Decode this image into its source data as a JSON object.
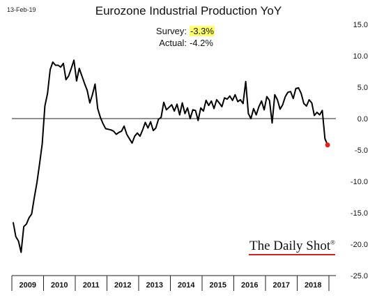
{
  "date_label": "13-Feb-19",
  "survey": {
    "label": "Survey:",
    "value": "-3.3%"
  },
  "actual": {
    "label": "Actual:",
    "value": "-4.2%"
  },
  "brand": {
    "name": "The Daily Shot",
    "mark": "®"
  },
  "colors": {
    "line": "#000000",
    "last_point": "#e8201c",
    "survey_highlight": "#ffff66",
    "brand_underline": "#d41f1f"
  },
  "chart_data": {
    "type": "line",
    "title": "Eurozone Industrial Production YoY",
    "xlabel": "",
    "ylabel": "",
    "ylim": [
      -25,
      15
    ],
    "y_ticks": [
      "15.0",
      "10.0",
      "5.0",
      "0.0",
      "-5.0",
      "-10.0",
      "-15.0",
      "-20.0",
      "-25.0"
    ],
    "y_axis_side": "right",
    "grid": false,
    "zero_line": true,
    "x_categories": [
      "2009",
      "2010",
      "2011",
      "2012",
      "2013",
      "2014",
      "2015",
      "2016",
      "2017",
      "2018"
    ],
    "series": [
      {
        "x": [
          "2009-01",
          "2009-02",
          "2009-03",
          "2009-04",
          "2009-05",
          "2009-06",
          "2009-07",
          "2009-08",
          "2009-09",
          "2009-10",
          "2009-11",
          "2009-12",
          "2010-01",
          "2010-02",
          "2010-03",
          "2010-04",
          "2010-05",
          "2010-06",
          "2010-07",
          "2010-08",
          "2010-09",
          "2010-10",
          "2010-11",
          "2010-12",
          "2011-01",
          "2011-02",
          "2011-03",
          "2011-04",
          "2011-05",
          "2011-06",
          "2011-07",
          "2011-08",
          "2011-09",
          "2011-10",
          "2011-11",
          "2011-12",
          "2012-01",
          "2012-02",
          "2012-03",
          "2012-04",
          "2012-05",
          "2012-06",
          "2012-07",
          "2012-08",
          "2012-09",
          "2012-10",
          "2012-11",
          "2012-12",
          "2013-01",
          "2013-02",
          "2013-03",
          "2013-04",
          "2013-05",
          "2013-06",
          "2013-07",
          "2013-08",
          "2013-09",
          "2013-10",
          "2013-11",
          "2013-12",
          "2014-01",
          "2014-02",
          "2014-03",
          "2014-04",
          "2014-05",
          "2014-06",
          "2014-07",
          "2014-08",
          "2014-09",
          "2014-10",
          "2014-11",
          "2014-12",
          "2015-01",
          "2015-02",
          "2015-03",
          "2015-04",
          "2015-05",
          "2015-06",
          "2015-07",
          "2015-08",
          "2015-09",
          "2015-10",
          "2015-11",
          "2015-12",
          "2016-01",
          "2016-02",
          "2016-03",
          "2016-04",
          "2016-05",
          "2016-06",
          "2016-07",
          "2016-08",
          "2016-09",
          "2016-10",
          "2016-11",
          "2016-12",
          "2017-01",
          "2017-02",
          "2017-03",
          "2017-04",
          "2017-05",
          "2017-06",
          "2017-07",
          "2017-08",
          "2017-09",
          "2017-10",
          "2017-11",
          "2017-12",
          "2018-01",
          "2018-02",
          "2018-03",
          "2018-04",
          "2018-05",
          "2018-06",
          "2018-07",
          "2018-08",
          "2018-09",
          "2018-10",
          "2018-11",
          "2018-12"
        ],
        "values": [
          -16.5,
          -18.8,
          -19.5,
          -21.3,
          -17.2,
          -16.8,
          -15.8,
          -15.2,
          -12.6,
          -10.2,
          -7.2,
          -4.0,
          2.0,
          4.0,
          7.8,
          9.0,
          8.5,
          8.5,
          8.2,
          8.8,
          6.2,
          6.8,
          8.0,
          9.3,
          6.0,
          8.0,
          6.8,
          5.6,
          4.5,
          2.5,
          3.8,
          5.5,
          1.6,
          0.2,
          -0.8,
          -1.6,
          -1.7,
          -1.8,
          -2.0,
          -2.5,
          -2.2,
          -2.0,
          -1.2,
          -2.5,
          -3.2,
          -3.9,
          -2.8,
          -2.3,
          -2.8,
          -1.8,
          -0.6,
          -1.5,
          -0.5,
          -1.9,
          -1.5,
          -0.1,
          0.2,
          2.6,
          1.4,
          1.8,
          2.2,
          1.2,
          2.3,
          0.6,
          2.5,
          0.8,
          1.7,
          0.0,
          1.4,
          1.3,
          -0.3,
          1.7,
          1.2,
          2.9,
          2.1,
          2.8,
          1.6,
          3.0,
          2.5,
          1.9,
          3.3,
          3.1,
          3.6,
          2.9,
          3.8,
          2.7,
          3.0,
          2.4,
          5.9,
          0.8,
          0.0,
          1.6,
          0.6,
          1.9,
          2.8,
          1.4,
          3.5,
          2.9,
          -0.7,
          3.8,
          3.0,
          1.5,
          2.2,
          3.5,
          4.2,
          4.3,
          3.2,
          4.8,
          4.9,
          4.0,
          2.4,
          2.0,
          3.0,
          2.5,
          0.5,
          1.0,
          0.6,
          1.3,
          -3.2,
          -4.2
        ]
      }
    ],
    "last_point": {
      "x": "2018-12",
      "value": -4.2
    }
  }
}
